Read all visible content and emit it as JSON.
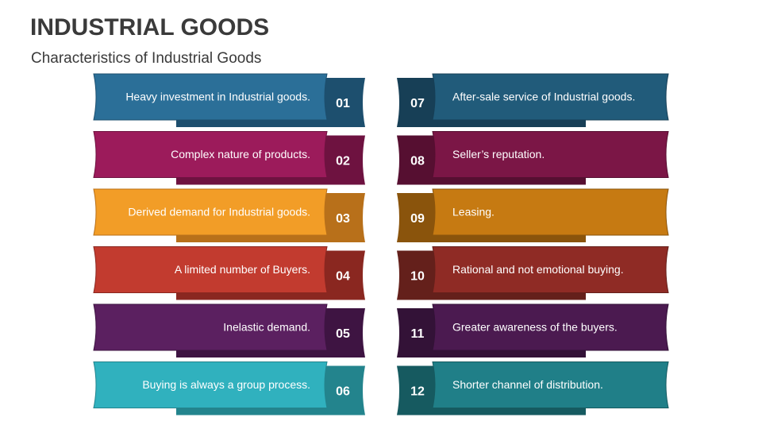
{
  "header": {
    "title": "INDUSTRIAL GOODS",
    "subtitle": "Characteristics of Industrial Goods"
  },
  "items": [
    {
      "number": "01",
      "text": "Heavy investment in Industrial goods."
    },
    {
      "number": "02",
      "text": "Complex nature of products."
    },
    {
      "number": "03",
      "text": "Derived demand for Industrial goods."
    },
    {
      "number": "04",
      "text": "A limited number of Buyers."
    },
    {
      "number": "05",
      "text": "Inelastic demand."
    },
    {
      "number": "06",
      "text": "Buying is always a group process."
    },
    {
      "number": "07",
      "text": "After-sale service of Industrial goods."
    },
    {
      "number": "08",
      "text": "Seller’s reputation."
    },
    {
      "number": "09",
      "text": "Leasing."
    },
    {
      "number": "10",
      "text": "Rational and not emotional buying."
    },
    {
      "number": "11",
      "text": "Greater awareness of the buyers."
    },
    {
      "number": "12",
      "text": "Shorter channel of distribution."
    }
  ]
}
